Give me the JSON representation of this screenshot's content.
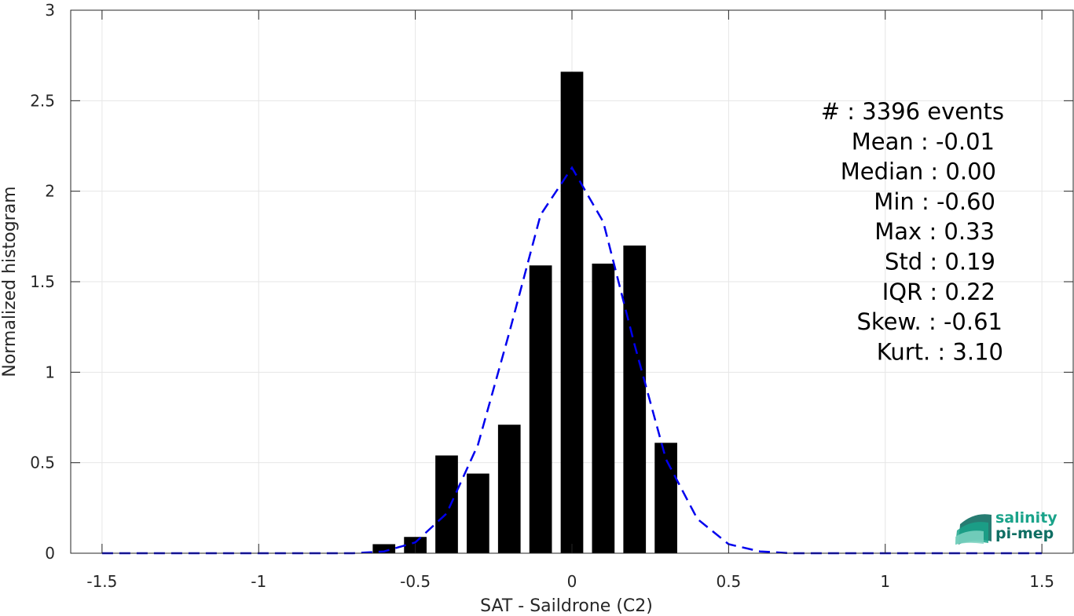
{
  "chart_data": {
    "type": "bar",
    "xlabel": "SAT - Saildrone (C2)",
    "ylabel": "Normalized histogram",
    "xlim": [
      -1.6,
      1.6
    ],
    "ylim": [
      0,
      3
    ],
    "grid": true,
    "x_ticks": [
      "-1.5",
      "-1",
      "-0.5",
      "0",
      "0.5",
      "1",
      "1.5"
    ],
    "y_ticks": [
      "0",
      "0.5",
      "1",
      "1.5",
      "2",
      "2.5",
      "3"
    ],
    "bars": {
      "x": [
        -0.6,
        -0.5,
        -0.4,
        -0.3,
        -0.2,
        -0.1,
        0.0,
        0.1,
        0.2,
        0.3
      ],
      "values": [
        0.05,
        0.09,
        0.54,
        0.44,
        0.71,
        1.59,
        2.66,
        1.6,
        1.7,
        0.61
      ],
      "color": "#000000"
    },
    "fit_curve": {
      "style": "dashed",
      "color": "#0000ee",
      "x": [
        -1.5,
        -1.4,
        -1.3,
        -1.2,
        -1.1,
        -1.0,
        -0.9,
        -0.8,
        -0.7,
        -0.6,
        -0.5,
        -0.4,
        -0.3,
        -0.2,
        -0.1,
        0.0,
        0.1,
        0.2,
        0.3,
        0.4,
        0.5,
        0.6,
        0.7,
        0.8,
        0.9,
        1.0,
        1.1,
        1.2,
        1.3,
        1.4,
        1.5
      ],
      "y": [
        0,
        0,
        0,
        0,
        0,
        0,
        0,
        0,
        0,
        0.01,
        0.06,
        0.22,
        0.6,
        1.22,
        1.87,
        2.13,
        1.83,
        1.15,
        0.52,
        0.19,
        0.05,
        0.01,
        0,
        0,
        0,
        0,
        0,
        0,
        0,
        0,
        0
      ]
    },
    "stats": [
      "#  : 3396 events",
      "Mean : -0.01",
      "Median : 0.00",
      "Min : -0.60",
      "Max : 0.33",
      "Std : 0.19",
      "IQR : 0.22",
      "Skew. : -0.61",
      "Kurt. : 3.10"
    ]
  },
  "logo": {
    "line1": "salinity",
    "line2": "pi-mep",
    "color1": "#1aa38a",
    "color2": "#0f6e63"
  }
}
